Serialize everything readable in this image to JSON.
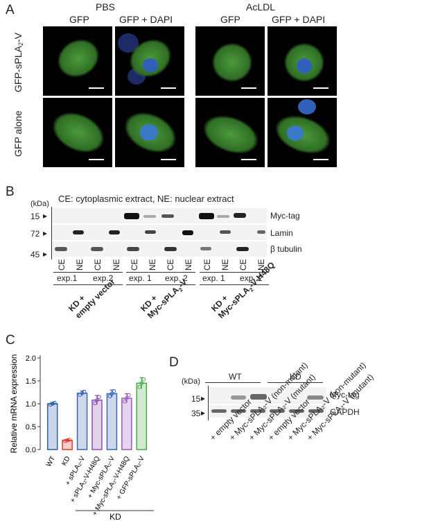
{
  "panelA": {
    "label": "A",
    "group1": "PBS",
    "group2": "AcLDL",
    "col_gfp": "GFP",
    "col_merge": "GFP + DAPI",
    "row1_prefix": "GFP-sPLA",
    "row1_sub": "2",
    "row1_suffix": "-V",
    "row2": "GFP alone"
  },
  "panelB": {
    "label": "B",
    "kda": "(kDa)",
    "legend": "CE: cytoplasmic extract,   NE: nuclear extract",
    "markers": [
      "15",
      "72",
      "45"
    ],
    "bands": [
      "Myc-tag",
      "Lamin",
      "β tubulin"
    ],
    "lanes": [
      "CE",
      "NE",
      "CE",
      "NE",
      "CE",
      "NE",
      "CE",
      "NE",
      "CE",
      "NE",
      "CE",
      "NE"
    ],
    "exps": [
      "exp.1",
      "exp.2",
      "exp. 1",
      "exp. 2",
      "exp. 1",
      "exp. 2"
    ],
    "group1a": "KD +",
    "group1b": "empty vector",
    "group2a": "KD +",
    "group2b": "Myc-sPLA",
    "group2sub": "2",
    "group2c": "-V",
    "group3a": "KD +",
    "group3b": "Myc-sPLA",
    "group3sub": "2",
    "group3c": "-V-H48Q"
  },
  "panelC": {
    "label": "C",
    "ylabel": "Relative mRNA expression",
    "yticks": [
      "0.0",
      "0.5",
      "1.0",
      "1.5",
      "2.0"
    ],
    "kd_label": "KD",
    "xlabels": [
      "WT",
      "KD",
      "+ sPLA₂-V",
      "+ sPLA₂-V-H48Q",
      "+ Myc-sPLA₂-V",
      "+ Myc-sPLA₂-V-H48Q",
      "+ GFP-sPLA₂-V"
    ]
  },
  "chart_data": {
    "type": "bar",
    "categories": [
      "WT",
      "KD",
      "+ sPLA2-V",
      "+ sPLA2-V-H48Q",
      "+ Myc-sPLA2-V",
      "+ Myc-sPLA2-V-H48Q",
      "+ GFP-sPLA2-V"
    ],
    "values": [
      1.0,
      0.2,
      1.23,
      1.08,
      1.22,
      1.12,
      1.45
    ],
    "errors": [
      0.03,
      0.02,
      0.05,
      0.1,
      0.08,
      0.1,
      0.12
    ],
    "ylabel": "Relative mRNA expression",
    "ylim": [
      0,
      2.0
    ],
    "colors": [
      "#2e5aa8",
      "#e03a2e",
      "#3a63b8",
      "#8a4cb0",
      "#3a63b8",
      "#9a56c0",
      "#4aa84a"
    ]
  },
  "panelD": {
    "label": "D",
    "kda": "(kDa)",
    "wt": "WT",
    "kd": "KD",
    "markers": [
      "15",
      "35"
    ],
    "bands": [
      "Myc-tag",
      "GAPDH"
    ],
    "lanes": [
      "+ empty vector",
      "+ Myc-sPLA₂-V (non-mutant)",
      "+ Myc-sPLA₂-V (mutant)",
      "+ empty vector",
      "+ Myc-sPLA₂-V (non-mutant)",
      "+ Myc-sPLA₂-V (mutant)"
    ]
  }
}
